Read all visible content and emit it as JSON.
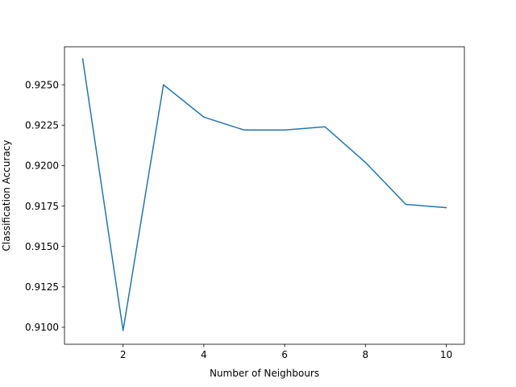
{
  "chart_data": {
    "type": "line",
    "title": "",
    "xlabel": "Number of Neighbours",
    "ylabel": "Classification Accuracy",
    "xlim": [
      0.55,
      10.45
    ],
    "ylim": [
      0.90895,
      0.92735
    ],
    "xticks": [
      2,
      4,
      6,
      8,
      10
    ],
    "xtick_labels": [
      "2",
      "4",
      "6",
      "8",
      "10"
    ],
    "yticks": [
      0.91,
      0.9125,
      0.915,
      0.9175,
      0.92,
      0.9225,
      0.925
    ],
    "ytick_labels": [
      "0.9100",
      "0.9125",
      "0.9150",
      "0.9175",
      "0.9200",
      "0.9225",
      "0.9250"
    ],
    "grid": false,
    "series": [
      {
        "color": "#1f77b4",
        "x": [
          1,
          2,
          3,
          4,
          5,
          6,
          7,
          8,
          9,
          10
        ],
        "y": [
          0.9266,
          0.9098,
          0.925,
          0.923,
          0.9222,
          0.9222,
          0.9224,
          0.9202,
          0.9176,
          0.9174
        ]
      }
    ]
  }
}
